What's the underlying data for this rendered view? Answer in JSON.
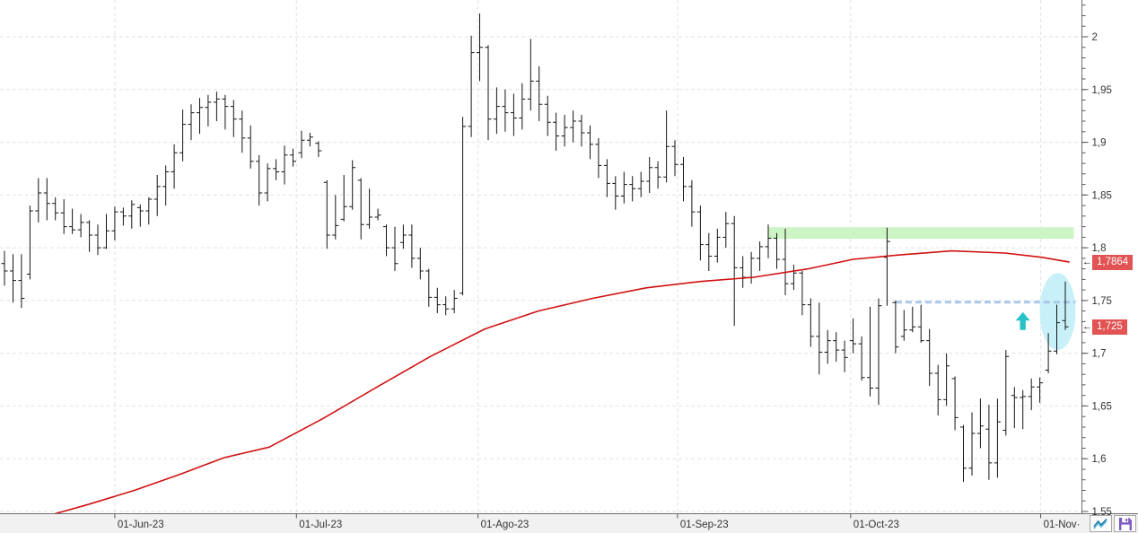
{
  "chart_data": {
    "type": "ohlc",
    "description": "Daily OHLC bar chart with 200-period moving average, resistance zone and trade annotations",
    "bar_fields": [
      "open",
      "high",
      "low",
      "close"
    ],
    "bar_color": "#141414",
    "grid_color": "#e2e2e2",
    "y_axis": {
      "side": "right",
      "min": 1.55,
      "max": 2.035,
      "minor_step": 0.01,
      "major_ticks": [
        {
          "value": 2.0,
          "label": "2"
        },
        {
          "value": 1.95,
          "label": "1,95"
        },
        {
          "value": 1.9,
          "label": "1,9"
        },
        {
          "value": 1.85,
          "label": "1,85"
        },
        {
          "value": 1.8,
          "label": "1,8"
        },
        {
          "value": 1.75,
          "label": "1,75"
        },
        {
          "value": 1.7,
          "label": "1,7"
        },
        {
          "value": 1.65,
          "label": "1,65"
        },
        {
          "value": 1.6,
          "label": "1,6"
        },
        {
          "value": 1.55,
          "label": "1,55"
        }
      ]
    },
    "x_axis": {
      "ticks": [
        {
          "label": "01-Jun-23",
          "index": 13.0
        },
        {
          "label": "01-Jul-23",
          "index": 34.4
        },
        {
          "label": "01-Ago-23",
          "index": 55.8
        },
        {
          "label": "01-Sep-23",
          "index": 79.3
        },
        {
          "label": "01-Oct-23",
          "index": 99.7
        },
        {
          "label": "01-Nov·",
          "index": 122.1
        }
      ]
    },
    "bars_ohlc": [
      [
        1.785,
        1.797,
        1.764,
        1.778
      ],
      [
        1.778,
        1.794,
        1.748,
        1.769
      ],
      [
        1.769,
        1.794,
        1.743,
        1.752
      ],
      [
        1.775,
        1.84,
        1.77,
        1.835
      ],
      [
        1.835,
        1.866,
        1.824,
        1.852
      ],
      [
        1.852,
        1.866,
        1.826,
        1.842
      ],
      [
        1.842,
        1.848,
        1.826,
        1.833
      ],
      [
        1.833,
        1.846,
        1.813,
        1.82
      ],
      [
        1.82,
        1.837,
        1.813,
        1.817
      ],
      [
        1.817,
        1.832,
        1.81,
        1.824
      ],
      [
        1.824,
        1.826,
        1.796,
        1.812
      ],
      [
        1.812,
        1.822,
        1.793,
        1.8
      ],
      [
        1.8,
        1.832,
        1.799,
        1.816
      ],
      [
        1.816,
        1.839,
        1.807,
        1.834
      ],
      [
        1.834,
        1.838,
        1.821,
        1.83
      ],
      [
        1.83,
        1.845,
        1.818,
        1.841
      ],
      [
        1.838,
        1.841,
        1.82,
        1.835
      ],
      [
        1.835,
        1.848,
        1.822,
        1.846
      ],
      [
        1.846,
        1.869,
        1.83,
        1.858
      ],
      [
        1.858,
        1.878,
        1.84,
        1.872
      ],
      [
        1.872,
        1.898,
        1.856,
        1.89
      ],
      [
        1.89,
        1.931,
        1.882,
        1.917
      ],
      [
        1.917,
        1.936,
        1.902,
        1.928
      ],
      [
        1.928,
        1.942,
        1.908,
        1.933
      ],
      [
        1.933,
        1.945,
        1.915,
        1.938
      ],
      [
        1.938,
        1.948,
        1.92,
        1.941
      ],
      [
        1.941,
        1.945,
        1.912,
        1.934
      ],
      [
        1.934,
        1.94,
        1.905,
        1.922
      ],
      [
        1.922,
        1.93,
        1.89,
        1.904
      ],
      [
        1.904,
        1.916,
        1.875,
        1.882
      ],
      [
        1.882,
        1.888,
        1.84,
        1.852
      ],
      [
        1.852,
        1.88,
        1.844,
        1.875
      ],
      [
        1.875,
        1.884,
        1.864,
        1.872
      ],
      [
        1.872,
        1.897,
        1.86,
        1.888
      ],
      [
        1.888,
        1.894,
        1.877,
        1.882
      ],
      [
        1.89,
        1.911,
        1.885,
        1.902
      ],
      [
        1.902,
        1.909,
        1.896,
        1.905
      ],
      [
        1.899,
        1.901,
        1.886,
        1.892
      ],
      [
        1.862,
        1.864,
        1.799,
        1.812
      ],
      [
        1.812,
        1.85,
        1.808,
        1.821
      ],
      [
        1.827,
        1.869,
        1.825,
        1.839
      ],
      [
        1.839,
        1.883,
        1.836,
        1.876
      ],
      [
        1.864,
        1.866,
        1.808,
        1.822
      ],
      [
        1.822,
        1.856,
        1.818,
        1.829
      ],
      [
        1.829,
        1.837,
        1.826,
        1.831
      ],
      [
        1.82,
        1.822,
        1.792,
        1.8
      ],
      [
        1.8,
        1.82,
        1.778,
        1.785
      ],
      [
        1.805,
        1.822,
        1.799,
        1.812
      ],
      [
        1.812,
        1.822,
        1.781,
        1.79
      ],
      [
        1.79,
        1.8,
        1.77,
        1.778
      ],
      [
        1.778,
        1.78,
        1.744,
        1.753
      ],
      [
        1.753,
        1.762,
        1.738,
        1.746
      ],
      [
        1.746,
        1.754,
        1.736,
        1.742
      ],
      [
        1.742,
        1.76,
        1.738,
        1.752
      ],
      [
        1.757,
        1.924,
        1.755,
        1.915
      ],
      [
        1.915,
        2.001,
        1.905,
        1.985
      ],
      [
        1.985,
        2.022,
        1.958,
        1.99
      ],
      [
        1.99,
        1.992,
        1.902,
        1.922
      ],
      [
        1.922,
        1.952,
        1.908,
        1.934
      ],
      [
        1.934,
        1.95,
        1.91,
        1.928
      ],
      [
        1.928,
        1.946,
        1.906,
        1.923
      ],
      [
        1.923,
        1.956,
        1.912,
        1.941
      ],
      [
        1.941,
        1.998,
        1.93,
        1.958
      ],
      [
        1.958,
        1.972,
        1.92,
        1.936
      ],
      [
        1.936,
        1.944,
        1.906,
        1.919
      ],
      [
        1.919,
        1.928,
        1.892,
        1.906
      ],
      [
        1.906,
        1.926,
        1.896,
        1.914
      ],
      [
        1.914,
        1.93,
        1.9,
        1.92
      ],
      [
        1.92,
        1.926,
        1.896,
        1.909
      ],
      [
        1.909,
        1.916,
        1.884,
        1.898
      ],
      [
        1.898,
        1.904,
        1.866,
        1.878
      ],
      [
        1.878,
        1.884,
        1.848,
        1.861
      ],
      [
        1.861,
        1.868,
        1.836,
        1.849
      ],
      [
        1.849,
        1.872,
        1.842,
        1.86
      ],
      [
        1.86,
        1.868,
        1.844,
        1.856
      ],
      [
        1.856,
        1.872,
        1.848,
        1.863
      ],
      [
        1.863,
        1.886,
        1.852,
        1.876
      ],
      [
        1.876,
        1.882,
        1.856,
        1.867
      ],
      [
        1.867,
        1.93,
        1.862,
        1.896
      ],
      [
        1.896,
        1.902,
        1.868,
        1.879
      ],
      [
        1.879,
        1.886,
        1.844,
        1.858
      ],
      [
        1.858,
        1.864,
        1.82,
        1.834
      ],
      [
        1.834,
        1.84,
        1.788,
        1.803
      ],
      [
        1.803,
        1.814,
        1.778,
        1.792
      ],
      [
        1.792,
        1.818,
        1.786,
        1.81
      ],
      [
        1.81,
        1.834,
        1.8,
        1.823
      ],
      [
        1.823,
        1.83,
        1.726,
        1.781
      ],
      [
        1.781,
        1.792,
        1.762,
        1.772
      ],
      [
        1.772,
        1.796,
        1.766,
        1.79
      ],
      [
        1.79,
        1.806,
        1.778,
        1.801
      ],
      [
        1.801,
        1.822,
        1.79,
        1.809
      ],
      [
        1.809,
        1.814,
        1.78,
        1.789
      ],
      [
        1.789,
        1.818,
        1.755,
        1.766
      ],
      [
        1.766,
        1.784,
        1.76,
        1.776
      ],
      [
        1.776,
        1.778,
        1.736,
        1.746
      ],
      [
        1.746,
        1.752,
        1.706,
        1.716
      ],
      [
        1.716,
        1.748,
        1.68,
        1.701
      ],
      [
        1.701,
        1.722,
        1.69,
        1.712
      ],
      [
        1.712,
        1.72,
        1.692,
        1.703
      ],
      [
        1.703,
        1.712,
        1.682,
        1.696
      ],
      [
        1.712,
        1.733,
        1.7,
        1.709
      ],
      [
        1.709,
        1.716,
        1.674,
        1.677
      ],
      [
        1.677,
        1.744,
        1.659,
        1.667
      ],
      [
        1.667,
        1.752,
        1.651,
        1.745
      ],
      [
        1.791,
        1.819,
        1.745,
        1.806
      ],
      [
        1.748,
        1.75,
        1.7,
        1.706
      ],
      [
        1.716,
        1.741,
        1.712,
        1.722
      ],
      [
        1.722,
        1.744,
        1.72,
        1.725
      ],
      [
        1.725,
        1.746,
        1.71,
        1.712
      ],
      [
        1.712,
        1.723,
        1.669,
        1.681
      ],
      [
        1.681,
        1.689,
        1.641,
        1.656
      ],
      [
        1.656,
        1.7,
        1.65,
        1.688
      ],
      [
        1.676,
        1.678,
        1.627,
        1.639
      ],
      [
        1.63,
        1.632,
        1.578,
        1.591
      ],
      [
        1.591,
        1.644,
        1.584,
        1.624
      ],
      [
        1.624,
        1.657,
        1.61,
        1.631
      ],
      [
        1.628,
        1.651,
        1.58,
        1.596
      ],
      [
        1.596,
        1.657,
        1.582,
        1.635
      ],
      [
        1.627,
        1.703,
        1.622,
        1.697
      ],
      [
        1.66,
        1.668,
        1.629,
        1.658
      ],
      [
        1.658,
        1.665,
        1.628,
        1.659
      ],
      [
        1.659,
        1.676,
        1.646,
        1.668
      ],
      [
        1.668,
        1.677,
        1.653,
        1.672
      ],
      [
        1.684,
        1.719,
        1.681,
        1.702
      ],
      [
        1.702,
        1.746,
        1.699,
        1.729
      ],
      [
        1.731,
        1.768,
        1.722,
        1.725
      ]
    ],
    "ma_line": {
      "name": "moving-average",
      "color": "#d01111",
      "points": [
        [
          5.6,
          1.547
        ],
        [
          10,
          1.557
        ],
        [
          15.3,
          1.57
        ],
        [
          20.6,
          1.585
        ],
        [
          25.9,
          1.601
        ],
        [
          31.2,
          1.611
        ],
        [
          37.5,
          1.638
        ],
        [
          43.9,
          1.668
        ],
        [
          50.2,
          1.697
        ],
        [
          56.6,
          1.723
        ],
        [
          62.9,
          1.74
        ],
        [
          69.3,
          1.752
        ],
        [
          75.6,
          1.762
        ],
        [
          82,
          1.768
        ],
        [
          88.3,
          1.772
        ],
        [
          94.7,
          1.78
        ],
        [
          100,
          1.789
        ],
        [
          105.2,
          1.793
        ],
        [
          111.6,
          1.797
        ],
        [
          117.9,
          1.795
        ],
        [
          122.2,
          1.791
        ],
        [
          125.5,
          1.7864
        ]
      ]
    },
    "annotations": {
      "resistance_zone": {
        "start_index": 90.0,
        "end_index": 126.0,
        "top_value": 1.8195,
        "bottom_value": 1.8085,
        "color": "#cdf4c5"
      },
      "dashed_level": {
        "value": 1.7485,
        "start_index": 105.0,
        "end_index": 126.2,
        "color": "#a9c8e8"
      },
      "up_arrow": {
        "index": 120.0,
        "value": 1.739,
        "color": "#29c3c6"
      },
      "highlight_ellipse": {
        "index": 124.1,
        "value": 1.7395,
        "color": "#c8f0f8"
      }
    },
    "price_markers": [
      {
        "label": "1,7864",
        "value": 1.7864,
        "bg": "#e25353",
        "fg": "#ffffff",
        "pointer": "←"
      },
      {
        "label": "1,725",
        "value": 1.725,
        "bg": "#e25353",
        "fg": "#ffffff",
        "pointer": "←"
      }
    ]
  },
  "toolbar": {
    "buttons": [
      {
        "name": "line-mode",
        "icon": "zigzag-line-icon"
      },
      {
        "name": "save",
        "icon": "floppy-disk-icon"
      }
    ]
  },
  "colors": {
    "axis_line": "#6e6e6e",
    "tick": "#555555",
    "label_text": "#333333",
    "bottom_strip": "#f1f1f1"
  }
}
